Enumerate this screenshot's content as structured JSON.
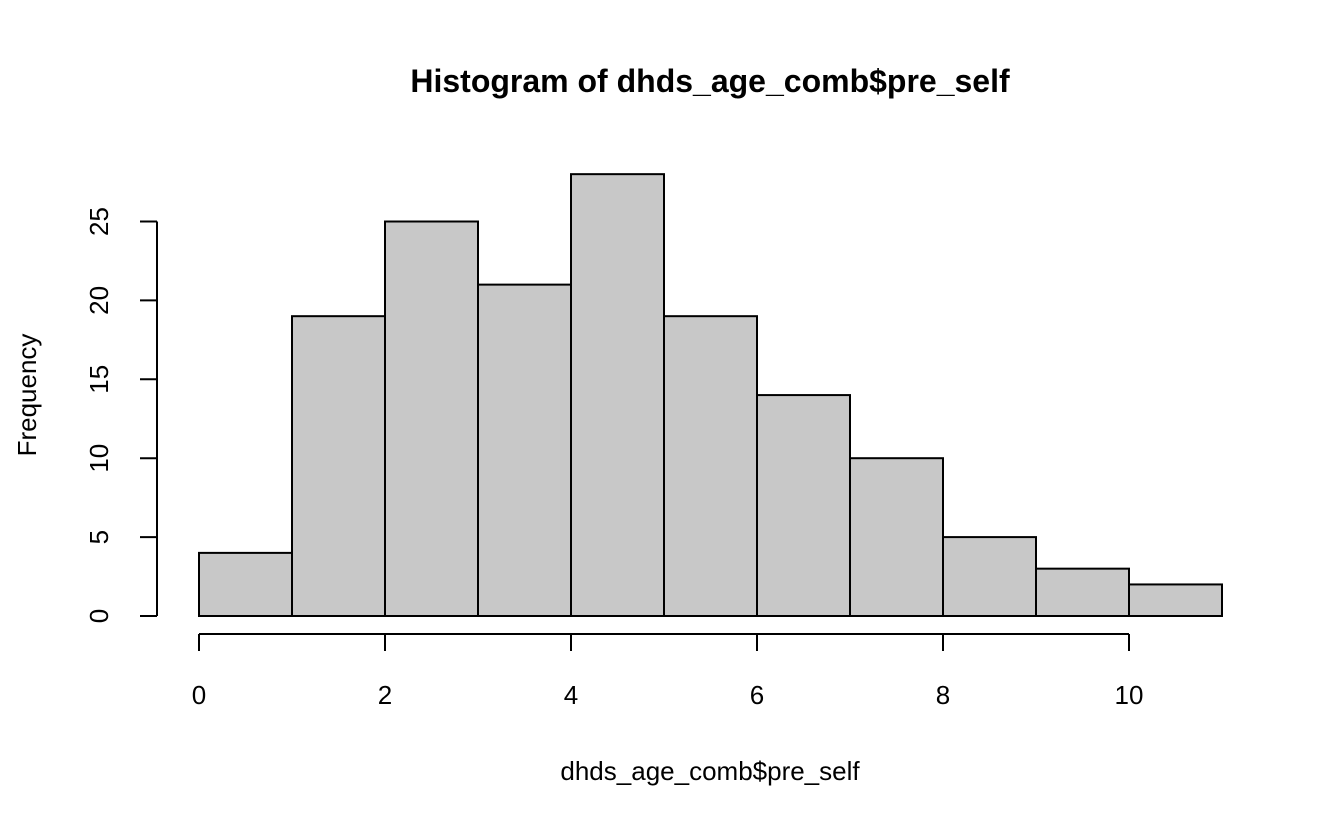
{
  "chart_data": {
    "type": "bar",
    "title": "Histogram of dhds_age_comb$pre_self",
    "xlabel": "dhds_age_comb$pre_self",
    "ylabel": "Frequency",
    "bin_edges": [
      0,
      1,
      2,
      3,
      4,
      5,
      6,
      7,
      8,
      9,
      10,
      11
    ],
    "values": [
      4,
      19,
      25,
      21,
      28,
      19,
      14,
      10,
      5,
      3,
      2
    ],
    "xlim": [
      0,
      11
    ],
    "ylim": [
      0,
      28
    ],
    "x_ticks": [
      0,
      2,
      4,
      6,
      8,
      10
    ],
    "y_ticks": [
      0,
      5,
      10,
      15,
      20,
      25
    ],
    "bar_color": "#c8c8c8",
    "border_color": "#000000",
    "grid": false,
    "legend": "none"
  }
}
